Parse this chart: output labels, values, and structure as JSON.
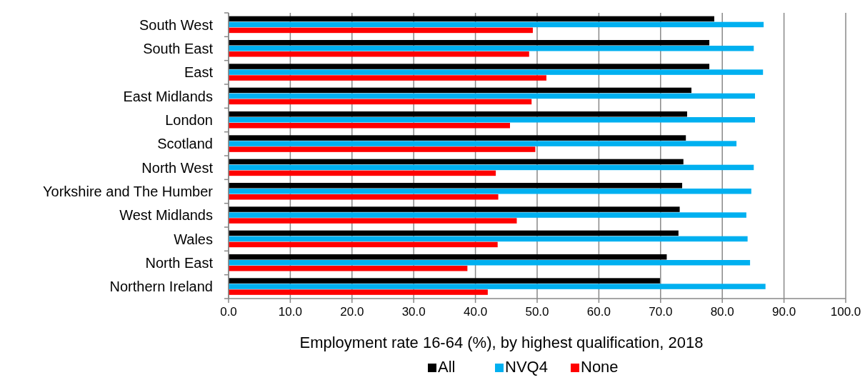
{
  "chart_data": {
    "type": "bar",
    "orientation": "horizontal",
    "xlabel": "Employment rate 16-64 (%), by highest qualification, 2018",
    "categories": [
      "South West",
      "South East",
      "East",
      "East Midlands",
      "London",
      "Scotland",
      "North West",
      "Yorkshire and The Humber",
      "West Midlands",
      "Wales",
      "North East",
      "Northern Ireland"
    ],
    "series": [
      {
        "name": "All",
        "color": "#000000",
        "values": [
          78.7,
          77.9,
          77.9,
          75.0,
          74.3,
          74.1,
          73.7,
          73.5,
          73.1,
          72.9,
          71.0,
          69.9
        ]
      },
      {
        "name": "NVQ4",
        "color": "#00b0f0",
        "values": [
          86.7,
          85.1,
          86.6,
          85.3,
          85.3,
          82.3,
          85.1,
          84.7,
          83.9,
          84.1,
          84.5,
          87.0
        ]
      },
      {
        "name": "None",
        "color": "#ff0000",
        "values": [
          49.3,
          48.7,
          51.5,
          49.1,
          45.6,
          49.7,
          43.3,
          43.7,
          46.7,
          43.6,
          38.7,
          42.0
        ]
      }
    ],
    "xlim": [
      0,
      100
    ],
    "xticks": [
      {
        "value": 0,
        "label": "0.0"
      },
      {
        "value": 10,
        "label": "10.0"
      },
      {
        "value": 20,
        "label": "20.0"
      },
      {
        "value": 30,
        "label": "30.0"
      },
      {
        "value": 40,
        "label": "40.0"
      },
      {
        "value": 50,
        "label": "50.0"
      },
      {
        "value": 60,
        "label": "60.0"
      },
      {
        "value": 70,
        "label": "70.0"
      },
      {
        "value": 80,
        "label": "80.0"
      },
      {
        "value": 90,
        "label": "90.0"
      },
      {
        "value": 100,
        "label": "100.0"
      }
    ],
    "grid": "x",
    "legend": "bottom"
  }
}
